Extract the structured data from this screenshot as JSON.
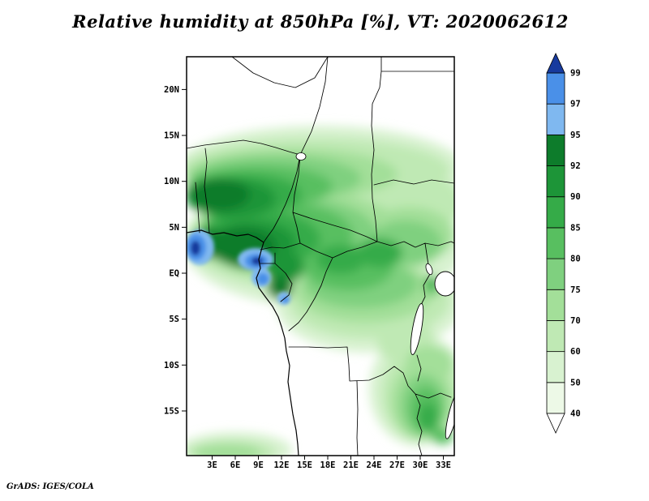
{
  "title": "Relative humidity at 850hPa [%], VT: 2020062612",
  "credit": "GrADS: IGES/COLA",
  "map": {
    "lat_ticks": [
      "20N",
      "15N",
      "10N",
      "5N",
      "EQ",
      "5S",
      "10S",
      "15S"
    ],
    "lon_ticks": [
      "3E",
      "6E",
      "9E",
      "12E",
      "15E",
      "18E",
      "21E",
      "24E",
      "27E",
      "30E",
      "33E"
    ]
  },
  "colorbar": {
    "levels": [
      "40",
      "50",
      "60",
      "70",
      "75",
      "80",
      "85",
      "90",
      "92",
      "95",
      "97",
      "99"
    ],
    "colors": [
      "#ffffff",
      "#edf9e7",
      "#d8f2d0",
      "#bfe9b4",
      "#a3df99",
      "#7fd07f",
      "#58bf60",
      "#35ab48",
      "#1d9538",
      "#0d7c2b",
      "#7fb8f0",
      "#4a90e8",
      "#173a9e"
    ]
  },
  "chart_data": {
    "type": "heatmap",
    "title": "Relative humidity at 850hPa [%], VT: 2020062612",
    "variable": "Relative humidity",
    "pressure_level": "850hPa",
    "units": "%",
    "valid_time": "2020062612",
    "x_ticks": [
      "3E",
      "6E",
      "9E",
      "12E",
      "15E",
      "18E",
      "21E",
      "24E",
      "27E",
      "30E",
      "33E"
    ],
    "y_ticks": [
      "20N",
      "15N",
      "10N",
      "5N",
      "EQ",
      "5S",
      "10S",
      "15S"
    ],
    "xlim_deg_east_approx": [
      0,
      34
    ],
    "ylim_deg_north_approx": [
      -20,
      23
    ],
    "contour_levels": [
      40,
      50,
      60,
      70,
      75,
      80,
      85,
      90,
      92,
      95,
      97,
      99
    ],
    "palette": [
      "#ffffff",
      "#edf9e7",
      "#d8f2d0",
      "#bfe9b4",
      "#a3df99",
      "#7fd07f",
      "#58bf60",
      "#35ab48",
      "#1d9538",
      "#0d7c2b",
      "#7fb8f0",
      "#4a90e8",
      "#173a9e"
    ],
    "legend_position": "right",
    "grid": false,
    "high_value_regions": [
      {
        "area": "Gulf of Guinea coast near 9-12E, 0-4N (Cameroon / Equatorial Guinea / Gabon coast)",
        "approx_value": "95-99"
      },
      {
        "area": "far west edge near 0-2E around 4-6N",
        "approx_value": "95-99"
      },
      {
        "area": "southern Nigeria and Cameroon",
        "approx_value": "85-95"
      },
      {
        "area": "zonal band 5N-12N across Nigeria, southern Chad, CAR",
        "approx_value": "70-90"
      },
      {
        "area": "northern Congo basin 0-5S",
        "approx_value": "70-85"
      },
      {
        "area": "around Lake Victoria / Lake Tanganyika and southeast highlands",
        "approx_value": "75-85"
      },
      {
        "area": "bottom edge near 15-17S west of 9E",
        "approx_value": "60-80"
      }
    ],
    "low_value_regions": [
      {
        "area": "north of 15N (Sahara)",
        "approx_value": "below 40-50"
      },
      {
        "area": "interior 8S-15S (Angola / western Zambia)",
        "approx_value": "below 40-60"
      }
    ]
  }
}
